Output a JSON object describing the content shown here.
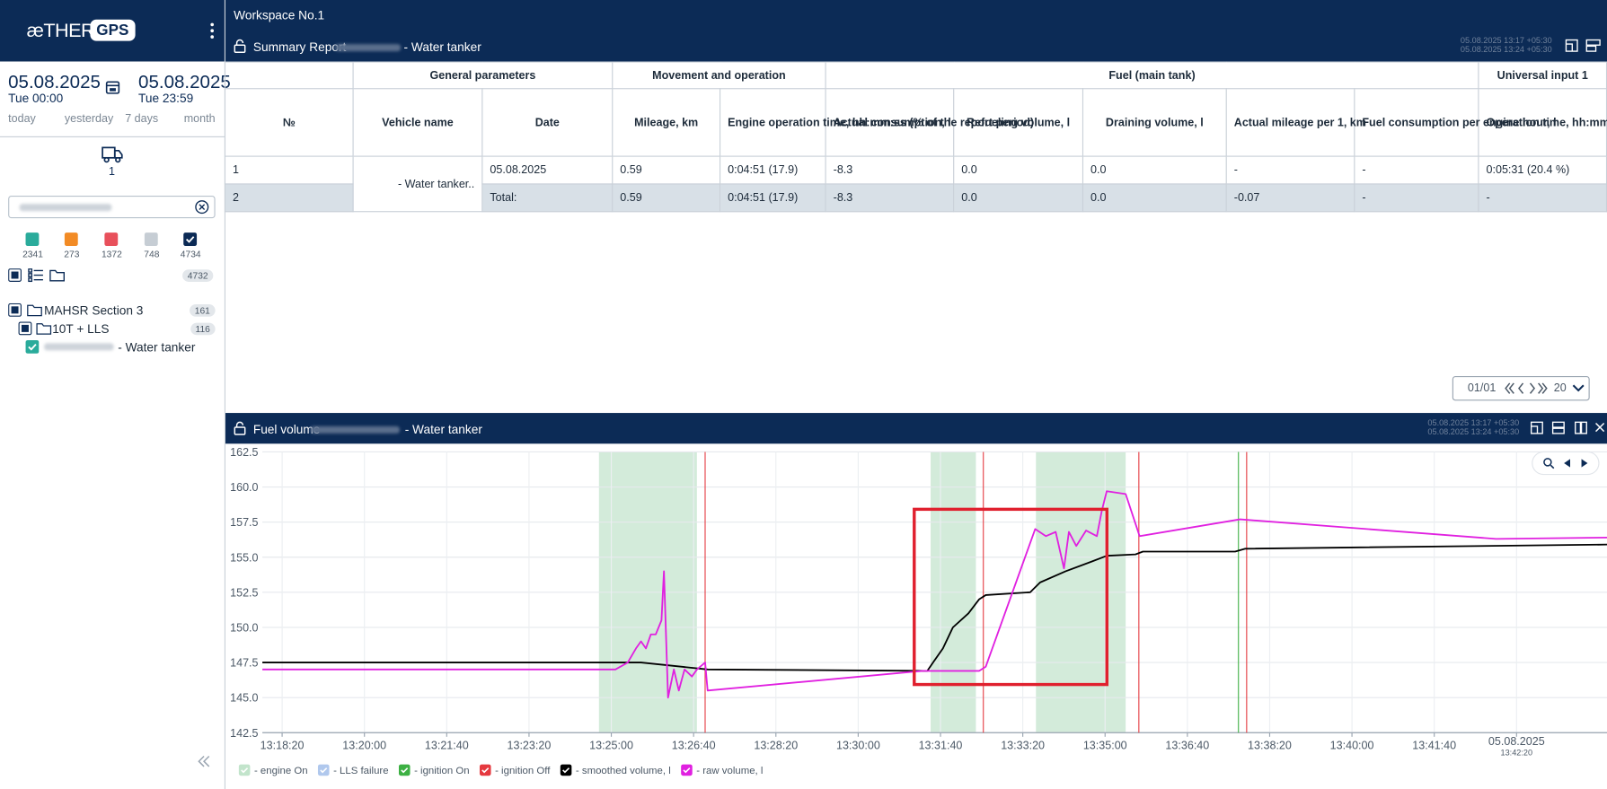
{
  "sidebar": {
    "logo": {
      "brand": "æTHER",
      "badge": "GPS"
    },
    "date_from": {
      "date": "05.08.2025",
      "time": "Tue 00:00"
    },
    "date_to": {
      "date": "05.08.2025",
      "time": "Tue 23:59"
    },
    "quick_ranges": [
      "today",
      "yesterday",
      "7 days",
      "month"
    ],
    "vehicle_count": 1,
    "status_counts": [
      {
        "count": 2341,
        "color": "#2aab9b"
      },
      {
        "count": 273,
        "color": "#f28b25"
      },
      {
        "count": 1372,
        "color": "#e8505b"
      },
      {
        "count": 748,
        "color": "#c6cdd4"
      },
      {
        "count": 4734,
        "color": "#0b2a55"
      }
    ],
    "selected_total": 4732,
    "tree": [
      {
        "label": "MAHSR Section 3",
        "count": 161
      },
      {
        "label": "10T + LLS",
        "count": 116
      },
      {
        "label": "- Water tanker"
      }
    ]
  },
  "workspace": {
    "title": "Workspace No.1"
  },
  "report": {
    "title": "Summary Report",
    "vehicle_suffix": "- Water tanker",
    "period_from": "05.08.2025 13:17 +05:30",
    "period_to": "05.08.2025 13:24 +05:30",
    "table": {
      "groups": [
        "General parameters",
        "Movement and operation",
        "Fuel (main tank)",
        "Universal input 1"
      ],
      "columns": [
        "№",
        "Vehicle name",
        "Date",
        "Mileage, km",
        "Engine operation time, hh:mm:ss (% of the report period)",
        "Actual consumption, l",
        "Refueling volume, l",
        "Draining volume, l",
        "Actual mileage per 1, km",
        "Fuel consumption per engine hour, l",
        "Operation time, hh:mm:ss"
      ],
      "rows": [
        [
          "1",
          "- Water tanker..",
          "05.08.2025",
          "0.59",
          "0:04:51 (17.9)",
          "-8.3",
          "0.0",
          "0.0",
          "-",
          "-",
          "0:05:31 (20.4 %)"
        ],
        [
          "2",
          "Total:",
          "0.59",
          "0:04:51 (17.9)",
          "-8.3",
          "0.0",
          "0.0",
          "-0.07",
          "-",
          "-"
        ]
      ]
    },
    "pagination": {
      "page": "01/01",
      "page_size": "20"
    }
  },
  "chart_data": {
    "type": "line",
    "title": "Fuel volume",
    "subtitle": "- Water tanker",
    "period_from": "05.08.2025 13:17 +05:30",
    "period_to": "05.08.2025 13:24 +05:30",
    "xlim": [
      47876,
      49510
    ],
    "ylim": [
      142.5,
      162.5
    ],
    "xticks": [
      {
        "value": 47900,
        "label": "13:18:20"
      },
      {
        "value": 48000,
        "label": "13:20:00"
      },
      {
        "value": 48100,
        "label": "13:21:40"
      },
      {
        "value": 48200,
        "label": "13:23:20"
      },
      {
        "value": 48300,
        "label": "13:25:00"
      },
      {
        "value": 48400,
        "label": "13:26:40"
      },
      {
        "value": 48500,
        "label": "13:28:20"
      },
      {
        "value": 48600,
        "label": "13:30:00"
      },
      {
        "value": 48700,
        "label": "13:31:40"
      },
      {
        "value": 48800,
        "label": "13:33:20"
      },
      {
        "value": 48900,
        "label": "13:35:00"
      },
      {
        "value": 49000,
        "label": "13:36:40"
      },
      {
        "value": 49100,
        "label": "13:38:20"
      },
      {
        "value": 49200,
        "label": "13:40:00"
      },
      {
        "value": 49300,
        "label": "13:41:40"
      },
      {
        "value": 49400,
        "label": "05.08.2025",
        "sublabel": "13:42:20"
      }
    ],
    "yticks": [
      142.5,
      {
        "value": 145,
        "label": "145.0"
      },
      147.5,
      {
        "value": 150,
        "label": "150.0"
      },
      152.5,
      {
        "value": 155,
        "label": "155.0"
      },
      157.5,
      {
        "value": 160,
        "label": "160.0"
      },
      162.5
    ],
    "grid": true,
    "events": [
      {
        "name": "- engine On",
        "color": "#a8d8b5",
        "intervals": [
          [
            48285,
            48404
          ],
          [
            48688,
            48743
          ],
          [
            48816,
            48925
          ]
        ]
      },
      {
        "name": "- LLS failure",
        "color": "#8fb1e6"
      },
      {
        "name": "- ignition On",
        "color": "#3cb043",
        "times": [
          49062
        ]
      },
      {
        "name": "- ignition Off",
        "color": "#e5393f",
        "times": [
          48414,
          48752,
          48941,
          49072
        ]
      }
    ],
    "series": [
      {
        "name": "- smoothed volume, l",
        "color": "#000000",
        "x": [
          47876,
          48336,
          48417,
          48684,
          48691,
          48703,
          48715,
          48734,
          48747,
          48755,
          48809,
          48821,
          48852,
          48884,
          48902,
          48937,
          48946,
          49058,
          49070,
          49510
        ],
        "values": [
          147.5,
          147.5,
          147.0,
          146.9,
          147.5,
          148.5,
          150.0,
          151.0,
          152.0,
          152.3,
          152.5,
          153.2,
          154.0,
          154.7,
          155.1,
          155.2,
          155.4,
          155.4,
          155.6,
          155.9
        ]
      },
      {
        "name": "- raw volume, l",
        "color": "#e020e0",
        "x": [
          47876,
          48288,
          48305,
          48320,
          48330,
          48336,
          48342,
          48348,
          48354,
          48361,
          48364,
          48369,
          48376,
          48382,
          48389,
          48398,
          48404,
          48414,
          48417,
          48678,
          48747,
          48755,
          48815,
          48828,
          48840,
          48850,
          48856,
          48865,
          48877,
          48890,
          48896,
          48902,
          48925,
          48942,
          49064,
          49375,
          49510
        ],
        "values": [
          147.0,
          147.0,
          147.0,
          147.5,
          148.5,
          149.0,
          148.5,
          149.5,
          149.5,
          150.5,
          154.0,
          145.0,
          147.0,
          145.5,
          147.0,
          146.5,
          147.0,
          147.5,
          145.5,
          146.9,
          146.9,
          147.2,
          157.0,
          156.5,
          156.8,
          154.2,
          156.8,
          155.8,
          156.9,
          156.5,
          158.3,
          159.7,
          159.5,
          156.5,
          157.7,
          156.3,
          156.4
        ]
      }
    ]
  }
}
